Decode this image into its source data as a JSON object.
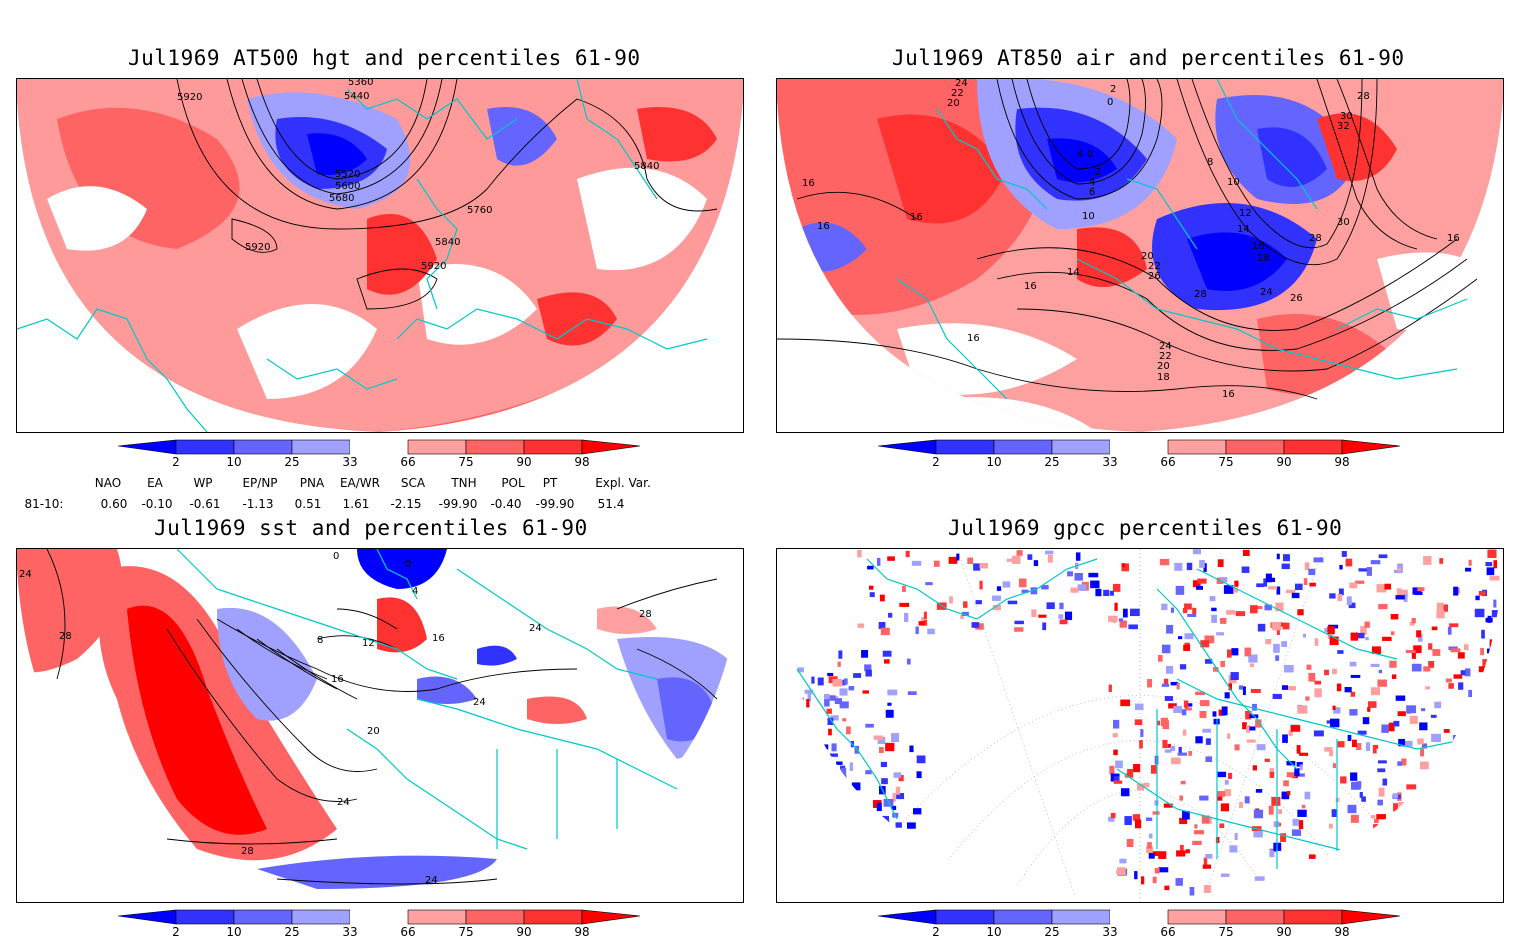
{
  "panels": [
    {
      "id": "p1",
      "title": "Jul1969 AT500 hgt and percentiles 61-90",
      "contour_labels": [
        "5360",
        "5440",
        "5920",
        "5520",
        "5600",
        "5680",
        "5760",
        "5840",
        "5920",
        "5840",
        "5920"
      ]
    },
    {
      "id": "p2",
      "title": "Jul1969 AT850 air and percentiles 61-90",
      "contour_labels": [
        "24",
        "22",
        "20",
        "2",
        "0",
        "4",
        "0",
        "2",
        "4",
        "6",
        "10",
        "8",
        "10",
        "12",
        "14",
        "16",
        "18",
        "20",
        "22",
        "26",
        "28",
        "24",
        "26",
        "28",
        "30",
        "32",
        "30",
        "28",
        "16",
        "16",
        "16",
        "16",
        "14",
        "16",
        "24",
        "22",
        "20",
        "18",
        "16",
        "16"
      ]
    },
    {
      "id": "p3",
      "title": "Jul1969 sst and percentiles 61-90",
      "contour_labels": [
        "24",
        "28",
        "0",
        "0",
        "4",
        "8",
        "12",
        "16",
        "16",
        "20",
        "24",
        "24",
        "28",
        "24",
        "28",
        "24"
      ]
    },
    {
      "id": "p4",
      "title": "Jul1969 gpcc percentiles 61-90",
      "contour_labels": []
    }
  ],
  "colorbar": {
    "labels": [
      "2",
      "10",
      "25",
      "33",
      "66",
      "75",
      "90",
      "98"
    ],
    "colors": [
      "#0000ff",
      "#3232ff",
      "#6464ff",
      "#a0a0ff",
      "#ffffff",
      "#ffa0a0",
      "#ff6464",
      "#ff3232",
      "#ff0000"
    ]
  },
  "indices": {
    "headers": [
      "NAO",
      "EA",
      "WP",
      "EP/NP",
      "PNA",
      "EA/WR",
      "SCA",
      "TNH",
      "POL",
      "PT",
      "Expl. Var."
    ],
    "row_label": "81-10:",
    "values": [
      "0.60",
      "-0.10",
      "-0.61",
      "-1.13",
      "0.51",
      "1.61",
      "-2.15",
      "-99.90",
      "-0.40",
      "-99.90",
      "51.4"
    ]
  },
  "colors": {
    "coast": "#00c8c8",
    "contour": "#000000",
    "red_light": "#ffa0a0",
    "red_mid": "#ff6464",
    "red_dark": "#ff3232",
    "blue_light": "#a0a0ff",
    "blue_mid": "#6464ff",
    "blue_dark": "#3232ff"
  }
}
